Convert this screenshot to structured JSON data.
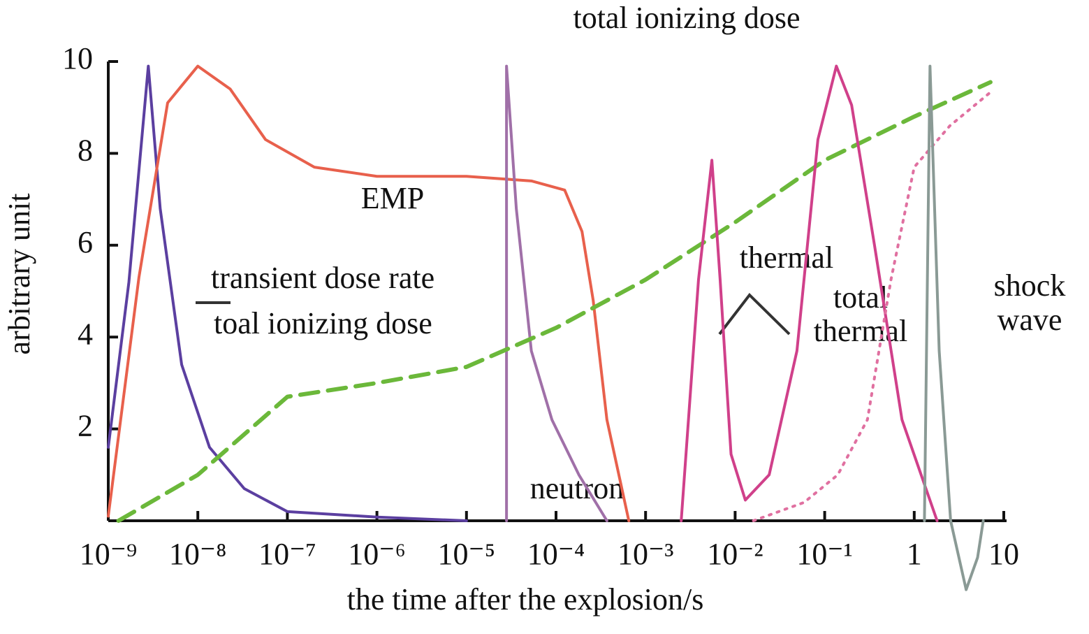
{
  "chart_data": {
    "type": "line",
    "xlabel": "the time after the explosion/s",
    "ylabel": "arbitrary unit",
    "xscale": "log",
    "xlim": [
      1e-09,
      10
    ],
    "xticks": [
      {
        "value": 1e-09,
        "label": "10⁻⁹"
      },
      {
        "value": 1e-08,
        "label": "10⁻⁸"
      },
      {
        "value": 1e-07,
        "label": "10⁻⁷"
      },
      {
        "value": 1e-06,
        "label": "10⁻⁶"
      },
      {
        "value": 1e-05,
        "label": "10⁻⁵"
      },
      {
        "value": 0.0001,
        "label": "10⁻⁴"
      },
      {
        "value": 0.001,
        "label": "10⁻³"
      },
      {
        "value": 0.01,
        "label": "10⁻²"
      },
      {
        "value": 0.1,
        "label": "10⁻¹"
      },
      1,
      10
    ],
    "ylim": [
      0,
      10
    ],
    "yticks": [
      2,
      4,
      6,
      8,
      10
    ],
    "annotations": [
      "total ionizing dose",
      "EMP",
      "transient dose rate",
      "toal ionizing dose",
      "neutron",
      "thermal",
      "total",
      "thermal",
      "shock",
      "wave"
    ],
    "series": [
      {
        "color": "#5b3fa0",
        "style": "solid",
        "x": [
          1e-09,
          1.7e-09,
          2.8e-09,
          3.8e-09,
          6.6e-09,
          1.35e-08,
          3.3e-08,
          1e-07,
          1e-06,
          1e-05
        ],
        "values": [
          1.6,
          5.2,
          9.9,
          6.8,
          3.4,
          1.6,
          0.7,
          0.2,
          0.08,
          0
        ]
      },
      {
        "color": "#e8604c",
        "style": "solid",
        "x": [
          1e-09,
          2.2e-09,
          4.6e-09,
          1e-08,
          2.3e-08,
          5.7e-08,
          2e-07,
          1e-06,
          1e-05,
          5.3e-05,
          0.000125,
          0.000195,
          0.00026,
          0.00037,
          0.00065
        ],
        "values": [
          0.1,
          5.3,
          9.1,
          9.9,
          9.4,
          8.3,
          7.7,
          7.5,
          7.5,
          7.4,
          7.2,
          6.3,
          4.8,
          2.2,
          0
        ]
      },
      {
        "color": "#a070a8",
        "style": "solid",
        "x": [
          2.8e-05,
          2.8e-05,
          3.6e-05,
          5.3e-05,
          9e-05,
          0.00018,
          0.00037
        ],
        "values": [
          0,
          9.9,
          6.8,
          3.7,
          2.2,
          1.0,
          0
        ]
      },
      {
        "color": "#6bb83a",
        "style": "dashed",
        "x": [
          1.3e-09,
          1e-08,
          1e-07,
          1e-06,
          1e-05,
          0.0001,
          0.001,
          0.01,
          0.1,
          1,
          7.1
        ],
        "values": [
          0,
          1.0,
          2.7,
          3.0,
          3.35,
          4.2,
          5.25,
          6.5,
          7.85,
          8.8,
          9.55
        ]
      },
      {
        "color": "#d0408a",
        "style": "solid",
        "x": [
          0.0025,
          0.0039,
          0.0055,
          0.0068,
          0.009,
          0.013,
          0.024,
          0.049,
          0.084,
          0.135,
          0.2,
          0.36,
          0.73,
          1.8
        ],
        "values": [
          0,
          5.25,
          7.85,
          5.25,
          1.45,
          0.45,
          1.0,
          3.7,
          8.3,
          9.9,
          9.05,
          6.0,
          2.2,
          0
        ]
      },
      {
        "color": "#e070a0",
        "style": "dotted",
        "x": [
          0.016,
          0.059,
          0.14,
          0.3,
          0.55,
          1.0,
          2.5,
          7.4
        ],
        "values": [
          0,
          0.4,
          1.0,
          2.2,
          5.25,
          7.7,
          8.6,
          9.36
        ]
      },
      {
        "color": "#8a9a95",
        "style": "solid",
        "x": [
          1.3,
          1.5,
          1.9,
          2.55,
          3.8,
          5.1,
          5.9
        ],
        "values": [
          0,
          9.9,
          3.7,
          0,
          -1.5,
          -0.8,
          0
        ]
      }
    ]
  }
}
